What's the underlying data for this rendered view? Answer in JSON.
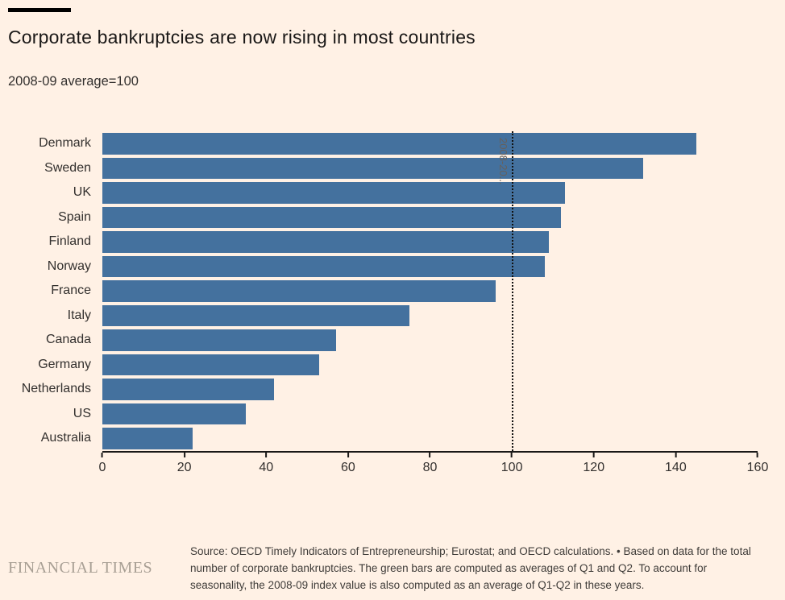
{
  "header": {
    "title": "Corporate bankruptcies are now rising in most countries",
    "subtitle": "2008-09 average=100"
  },
  "chart_data": {
    "type": "bar",
    "orientation": "horizontal",
    "title": "Corporate bankruptcies are now rising in most countries",
    "subtitle": "2008-09 average=100",
    "categories": [
      "Denmark",
      "Sweden",
      "UK",
      "Spain",
      "Finland",
      "Norway",
      "France",
      "Italy",
      "Canada",
      "Germany",
      "Netherlands",
      "US",
      "Australia"
    ],
    "values": [
      145,
      132,
      113,
      112,
      109,
      108,
      96,
      75,
      57,
      53,
      42,
      35,
      22
    ],
    "xlim": [
      0,
      160
    ],
    "xticks": [
      0,
      20,
      40,
      60,
      80,
      100,
      120,
      140,
      160
    ],
    "bar_color": "#44719e",
    "grid": false,
    "reference_line": {
      "value": 100,
      "label": "2008-20...",
      "style": "dotted",
      "color": "#111111"
    }
  },
  "footer": {
    "logo": "FINANCIAL TIMES",
    "source": "Source: OECD Timely Indicators of Entrepreneurship; Eurostat; and OECD calculations. • Based on data for the total number of corporate bankruptcies. The green bars are computed as averages of Q1 and Q2. To account for seasonality, the 2008-09 index value is also computed as an average of Q1-Q2 in these years."
  }
}
